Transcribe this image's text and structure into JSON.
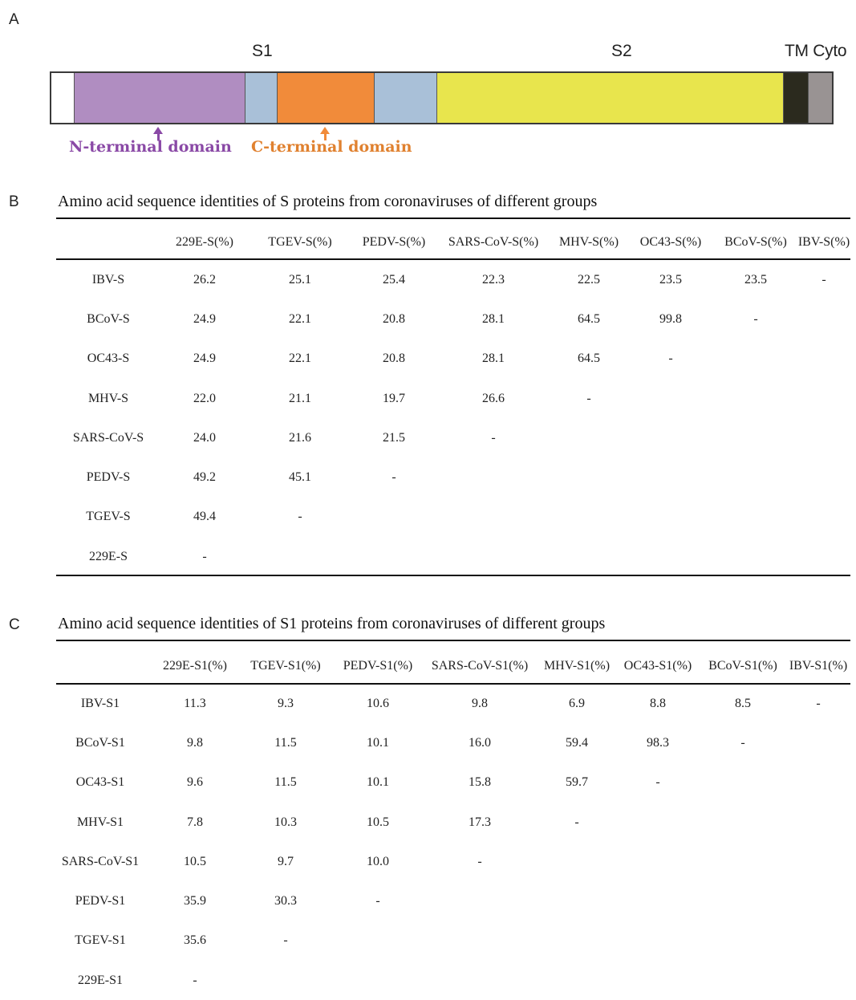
{
  "panel_a": {
    "letter": "A",
    "labels": {
      "s1": "S1",
      "s2": "S2",
      "tm_cyto": "TM Cyto"
    },
    "segments": [
      {
        "name": "signal",
        "color": "#ffffff",
        "flex": 28
      },
      {
        "name": "n-terminal",
        "color": "#b08dc1",
        "flex": 214
      },
      {
        "name": "linker-1",
        "color": "#a9c0d8",
        "flex": 39
      },
      {
        "name": "c-terminal",
        "color": "#f18b3a",
        "flex": 121
      },
      {
        "name": "linker-2",
        "color": "#a9c0d8",
        "flex": 77
      },
      {
        "name": "s2",
        "color": "#e8e54d",
        "flex": 435
      },
      {
        "name": "tm",
        "color": "#2b2a1e",
        "flex": 30
      },
      {
        "name": "cyto",
        "color": "#999393",
        "flex": 29
      }
    ],
    "n_terminal_label": "N-terminal domain",
    "c_terminal_label": "C-terminal domain",
    "n_terminal_color": "#8a49a6",
    "c_terminal_color": "#e0812f"
  },
  "panel_b": {
    "letter": "B",
    "title": "Amino acid sequence identities of S proteins from coronaviruses of different groups",
    "headers": [
      "229E-S(%)",
      "TGEV-S(%)",
      "PEDV-S(%)",
      "SARS-CoV-S(%)",
      "MHV-S(%)",
      "OC43-S(%)",
      "BCoV-S(%)",
      "IBV-S(%)"
    ],
    "rows": [
      {
        "label": "IBV-S",
        "cells": [
          "26.2",
          "25.1",
          "25.4",
          "22.3",
          "22.5",
          "23.5",
          "23.5",
          "-"
        ]
      },
      {
        "label": "BCoV-S",
        "cells": [
          "24.9",
          "22.1",
          "20.8",
          "28.1",
          "64.5",
          "99.8",
          "-",
          ""
        ]
      },
      {
        "label": "OC43-S",
        "cells": [
          "24.9",
          "22.1",
          "20.8",
          "28.1",
          "64.5",
          "-",
          "",
          ""
        ]
      },
      {
        "label": "MHV-S",
        "cells": [
          "22.0",
          "21.1",
          "19.7",
          "26.6",
          "-",
          "",
          "",
          ""
        ]
      },
      {
        "label": "SARS-CoV-S",
        "cells": [
          "24.0",
          "21.6",
          "21.5",
          "-",
          "",
          "",
          "",
          ""
        ]
      },
      {
        "label": "PEDV-S",
        "cells": [
          "49.2",
          "45.1",
          "-",
          "",
          "",
          "",
          "",
          ""
        ]
      },
      {
        "label": "TGEV-S",
        "cells": [
          "49.4",
          "-",
          "",
          "",
          "",
          "",
          "",
          ""
        ]
      },
      {
        "label": "229E-S",
        "cells": [
          "-",
          "",
          "",
          "",
          "",
          "",
          "",
          ""
        ]
      }
    ]
  },
  "panel_c": {
    "letter": "C",
    "title": "Amino acid sequence identities of S1 proteins from coronaviruses of different groups",
    "headers": [
      "229E-S1(%)",
      "TGEV-S1(%)",
      "PEDV-S1(%)",
      "SARS-CoV-S1(%)",
      "MHV-S1(%)",
      "OC43-S1(%)",
      "BCoV-S1(%)",
      "IBV-S1(%)"
    ],
    "rows": [
      {
        "label": "IBV-S1",
        "cells": [
          "11.3",
          "9.3",
          "10.6",
          "9.8",
          "6.9",
          "8.8",
          "8.5",
          "-"
        ]
      },
      {
        "label": "BCoV-S1",
        "cells": [
          "9.8",
          "11.5",
          "10.1",
          "16.0",
          "59.4",
          "98.3",
          "-",
          ""
        ]
      },
      {
        "label": "OC43-S1",
        "cells": [
          "9.6",
          "11.5",
          "10.1",
          "15.8",
          "59.7",
          "-",
          "",
          ""
        ]
      },
      {
        "label": "MHV-S1",
        "cells": [
          "7.8",
          "10.3",
          "10.5",
          "17.3",
          "-",
          "",
          "",
          ""
        ]
      },
      {
        "label": "SARS-CoV-S1",
        "cells": [
          "10.5",
          "9.7",
          "10.0",
          "-",
          "",
          "",
          "",
          ""
        ]
      },
      {
        "label": "PEDV-S1",
        "cells": [
          "35.9",
          "30.3",
          "-",
          "",
          "",
          "",
          "",
          ""
        ]
      },
      {
        "label": "TGEV-S1",
        "cells": [
          "35.6",
          "-",
          "",
          "",
          "",
          "",
          "",
          ""
        ]
      },
      {
        "label": "229E-S1",
        "cells": [
          "-",
          "",
          "",
          "",
          "",
          "",
          "",
          ""
        ]
      }
    ]
  }
}
